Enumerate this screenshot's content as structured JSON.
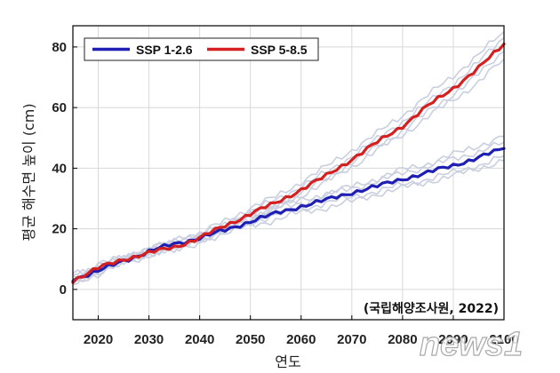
{
  "chart_data": {
    "type": "line",
    "title": "",
    "xlabel": "연도",
    "ylabel": "평균 해수면 높이 (cm)",
    "xlim": [
      2015,
      2100
    ],
    "ylim": [
      -10,
      87
    ],
    "xticks": [
      2020,
      2030,
      2040,
      2050,
      2060,
      2070,
      2080,
      2090,
      2100
    ],
    "xtick_labels": [
      "2020",
      "2030",
      "2040",
      "2050",
      "2060",
      "2070",
      "2080",
      "2090",
      "2100"
    ],
    "yticks": [
      0,
      20,
      40,
      60,
      80
    ],
    "ytick_labels": [
      "0",
      "20",
      "40",
      "60",
      "80"
    ],
    "grid": true,
    "legend_position": "top-left",
    "source_note": "(국립해양조사원, 2022)",
    "series": [
      {
        "name": "SSP 1-2.6",
        "color": "#1f1fb4",
        "x": [
          2015,
          2020,
          2025,
          2030,
          2035,
          2040,
          2045,
          2050,
          2055,
          2060,
          2065,
          2070,
          2075,
          2080,
          2085,
          2090,
          2095,
          2100
        ],
        "values": [
          3.5,
          6,
          9.5,
          12.5,
          15,
          17,
          19.5,
          22.5,
          25,
          27.5,
          29.5,
          32,
          34,
          36.5,
          38.5,
          41,
          43.5,
          46.5
        ]
      },
      {
        "name": "SSP 5-8.5",
        "color": "#d42020",
        "x": [
          2015,
          2020,
          2025,
          2030,
          2035,
          2040,
          2045,
          2050,
          2055,
          2060,
          2065,
          2070,
          2075,
          2080,
          2085,
          2090,
          2095,
          2100
        ],
        "values": [
          3,
          7,
          10,
          12,
          14,
          17,
          21,
          25,
          28.5,
          33,
          37.5,
          43,
          48.5,
          54,
          60.5,
          66.5,
          73,
          81
        ]
      }
    ],
    "ensemble_members": [
      {
        "group": "SSP 1-2.6",
        "values": [
          4.5,
          6.5,
          8.5,
          12,
          14,
          16,
          18.5,
          21,
          23,
          25.5,
          27,
          29,
          31.5,
          33.5,
          35.5,
          37.5,
          40,
          42.5
        ]
      },
      {
        "group": "SSP 1-2.6",
        "values": [
          3,
          5.5,
          10,
          13,
          16,
          18,
          21,
          24,
          27,
          29.5,
          31.5,
          34,
          36.5,
          39.5,
          41.5,
          44.5,
          47.5,
          50.5
        ]
      },
      {
        "group": "SSP 1-2.6",
        "values": [
          2,
          5,
          9,
          11.5,
          14.5,
          16.5,
          19,
          22,
          24.5,
          26.5,
          28.5,
          30.5,
          32.5,
          34.5,
          36.5,
          38.5,
          41,
          44
        ]
      },
      {
        "group": "SSP 1-2.6",
        "values": [
          5.5,
          7,
          10.5,
          14,
          15.5,
          18.5,
          20.5,
          23.5,
          26.5,
          28.5,
          31,
          33.5,
          35.5,
          38.5,
          40.5,
          43,
          45.5,
          48.5
        ]
      },
      {
        "group": "SSP 5-8.5",
        "values": [
          2.5,
          6,
          9,
          11,
          13,
          15.5,
          19.5,
          23.5,
          27,
          31,
          35.5,
          40.5,
          46,
          51,
          57,
          62.5,
          68.5,
          76
        ]
      },
      {
        "group": "SSP 5-8.5",
        "values": [
          4,
          8,
          11,
          13.5,
          15.5,
          18.5,
          22.5,
          27,
          30.5,
          35.5,
          40.5,
          46,
          51.5,
          57.5,
          64,
          70.5,
          77.5,
          85
        ]
      },
      {
        "group": "SSP 5-8.5",
        "values": [
          3.5,
          7.5,
          10.5,
          12.5,
          14.5,
          17.5,
          21.5,
          25.5,
          29.5,
          34,
          38.5,
          44,
          49.5,
          55.5,
          61.5,
          68,
          75,
          83
        ]
      },
      {
        "group": "SSP 5-8.5",
        "values": [
          2,
          6.5,
          9.5,
          11.5,
          13.5,
          16.5,
          20,
          24.5,
          28,
          32,
          36.5,
          42,
          47,
          52.5,
          58.5,
          64.5,
          71,
          78.5
        ]
      }
    ]
  },
  "watermark": "news1",
  "colors": {
    "grid": "#d8d8d8",
    "ensemble": "#c9cfdf",
    "axis": "#000000"
  }
}
